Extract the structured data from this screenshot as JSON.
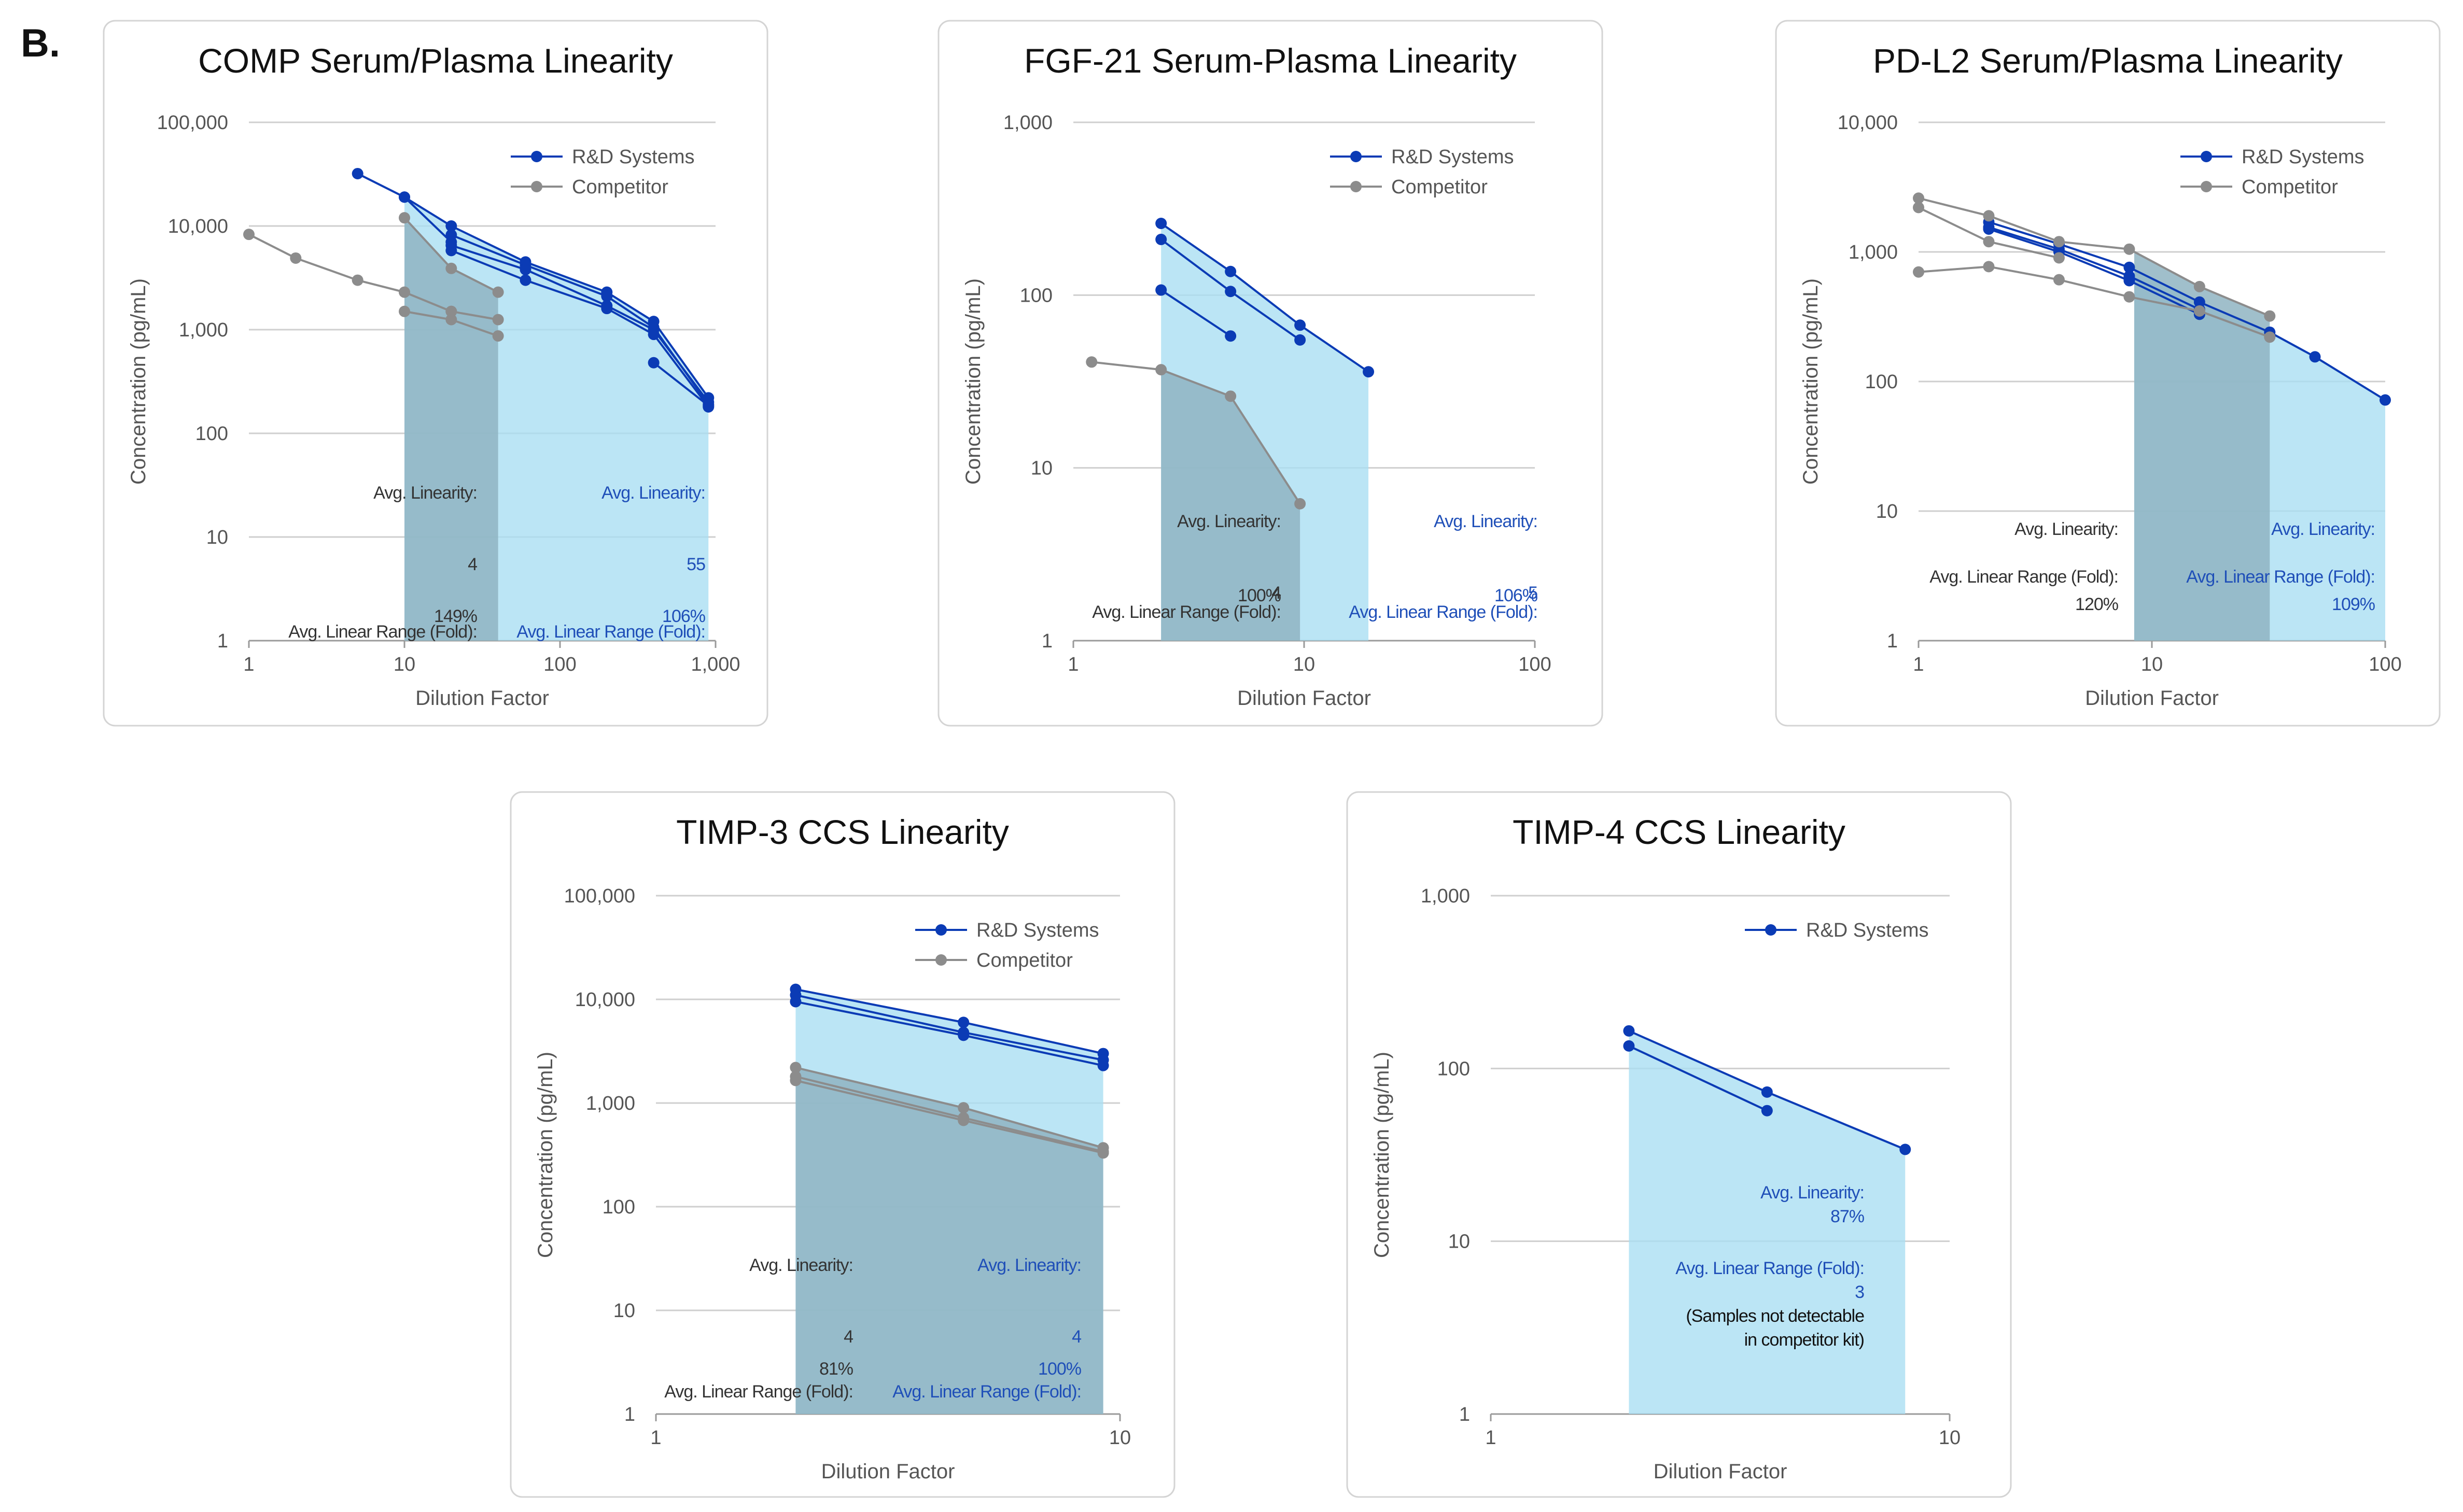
{
  "panel_label": "B.",
  "colors": {
    "rd": "#0b3bb5",
    "competitor": "#8c8c8c",
    "rd_fill": "#a8def2",
    "competitor_fill": "#8fb4c2",
    "rd_text": "#1f4fb8",
    "competitor_text": "#333333"
  },
  "legend": {
    "rd": "R&D Systems",
    "competitor": "Competitor"
  },
  "chart_data": [
    {
      "type": "line",
      "title": "COMP Serum/Plasma Linearity",
      "xlabel": "Dilution Factor",
      "ylabel": "Concentration (pg/mL)",
      "x_scale": "log",
      "y_scale": "log",
      "xlim": [
        1,
        1000
      ],
      "ylim": [
        1,
        100000
      ],
      "x_ticks": [
        1,
        10,
        100,
        1000
      ],
      "x_tick_labels": [
        "1",
        "10",
        "100",
        "1,000"
      ],
      "y_ticks": [
        1,
        10,
        100,
        1000,
        10000,
        100000
      ],
      "y_tick_labels": [
        "1",
        "10",
        "100",
        "1,000",
        "10,000",
        "100,000"
      ],
      "legend_position": "top-right",
      "legend_entries": [
        "rd",
        "competitor"
      ],
      "rd_range": [
        10,
        900
      ],
      "competitor_range": [
        10,
        40
      ],
      "series": [
        {
          "group": "rd",
          "x": [
            5,
            10,
            20,
            60,
            200,
            400,
            900
          ],
          "y": [
            32000,
            19000,
            10000,
            4500,
            2300,
            1200,
            220
          ]
        },
        {
          "group": "rd",
          "x": [
            20,
            60,
            200,
            400,
            900
          ],
          "y": [
            8200,
            4200,
            2100,
            1050,
            190
          ]
        },
        {
          "group": "rd",
          "x": [
            20,
            60,
            200,
            400,
            900
          ],
          "y": [
            6500,
            3800,
            1700,
            1000,
            200
          ]
        },
        {
          "group": "rd",
          "x": [
            20,
            60,
            200,
            400,
            900
          ],
          "y": [
            5800,
            3000,
            1600,
            900,
            180
          ]
        },
        {
          "group": "rd",
          "x": [
            10,
            20
          ],
          "y": [
            19000,
            7000
          ]
        },
        {
          "group": "rd",
          "x": [
            400,
            900
          ],
          "y": [
            480,
            185
          ]
        },
        {
          "group": "competitor",
          "x": [
            1,
            2,
            5,
            10,
            20
          ],
          "y": [
            8300,
            4900,
            3000,
            2300,
            1500
          ]
        },
        {
          "group": "competitor",
          "x": [
            10,
            20,
            40
          ],
          "y": [
            12000,
            3900,
            2300
          ]
        },
        {
          "group": "competitor",
          "x": [
            10,
            20,
            40
          ],
          "y": [
            1500,
            1250,
            870
          ]
        },
        {
          "group": "competitor",
          "x": [
            20,
            40
          ],
          "y": [
            1500,
            1250
          ]
        }
      ],
      "annotations": {
        "competitor": [
          "Avg. Linearity:",
          "149%",
          "Avg. Linear Range (Fold):",
          "4"
        ],
        "rd": [
          "Avg. Linearity:",
          "106%",
          "Avg. Linear Range (Fold):",
          "55"
        ]
      }
    },
    {
      "type": "line",
      "title": "FGF-21 Serum-Plasma Linearity",
      "xlabel": "Dilution Factor",
      "ylabel": "Concentration (pg/mL)",
      "x_scale": "log",
      "y_scale": "log",
      "xlim": [
        1,
        100
      ],
      "ylim": [
        1,
        1000
      ],
      "x_ticks": [
        1,
        10,
        100
      ],
      "x_tick_labels": [
        "1",
        "10",
        "100"
      ],
      "y_ticks": [
        1,
        10,
        100,
        1000
      ],
      "y_tick_labels": [
        "1",
        "10",
        "100",
        "1,000"
      ],
      "legend_position": "top-right",
      "legend_entries": [
        "rd",
        "competitor"
      ],
      "rd_range": [
        2.4,
        19
      ],
      "competitor_range": [
        2.4,
        9.6
      ],
      "series": [
        {
          "group": "rd",
          "x": [
            2.4,
            4.8,
            9.6,
            19
          ],
          "y": [
            260,
            137,
            67,
            36
          ]
        },
        {
          "group": "rd",
          "x": [
            2.4,
            4.8,
            9.6
          ],
          "y": [
            210,
            105,
            55
          ]
        },
        {
          "group": "rd",
          "x": [
            2.4,
            4.8
          ],
          "y": [
            107,
            58
          ]
        },
        {
          "group": "competitor",
          "x": [
            1.2,
            2.4,
            4.8,
            9.6
          ],
          "y": [
            41,
            37,
            26,
            6.2
          ]
        }
      ],
      "annotations": {
        "competitor": [
          "Avg. Linearity:",
          "100%",
          "Avg. Linear Range (Fold):",
          "4"
        ],
        "rd": [
          "Avg. Linearity:",
          "106%",
          "Avg. Linear Range (Fold):",
          "5"
        ]
      }
    },
    {
      "type": "line",
      "title": "PD-L2 Serum/Plasma Linearity",
      "xlabel": "Dilution Factor",
      "ylabel": "Concentration (pg/mL)",
      "x_scale": "log",
      "y_scale": "log",
      "xlim": [
        1,
        100
      ],
      "ylim": [
        1,
        10000
      ],
      "x_ticks": [
        1,
        10,
        100
      ],
      "x_tick_labels": [
        "1",
        "10",
        "100"
      ],
      "y_ticks": [
        1,
        10,
        100,
        1000,
        10000
      ],
      "y_tick_labels": [
        "1",
        "10",
        "100",
        "1,000",
        "10,000"
      ],
      "legend_position": "top-right",
      "legend_entries": [
        "rd",
        "competitor"
      ],
      "rd_range": [
        8.4,
        100
      ],
      "competitor_range": [
        8.4,
        33
      ],
      "series": [
        {
          "group": "rd",
          "x": [
            2,
            4,
            8,
            16,
            32,
            50,
            100
          ],
          "y": [
            1700,
            1150,
            760,
            410,
            240,
            155,
            72
          ]
        },
        {
          "group": "rd",
          "x": [
            2,
            4,
            8,
            16
          ],
          "y": [
            1550,
            1050,
            650,
            360
          ]
        },
        {
          "group": "rd",
          "x": [
            2,
            4,
            8,
            16
          ],
          "y": [
            1500,
            1000,
            600,
            330
          ]
        },
        {
          "group": "competitor",
          "x": [
            1,
            2,
            4,
            8,
            16,
            32
          ],
          "y": [
            2600,
            1900,
            1200,
            1050,
            540,
            320
          ]
        },
        {
          "group": "competitor",
          "x": [
            1,
            2,
            4
          ],
          "y": [
            2200,
            1200,
            900
          ]
        },
        {
          "group": "competitor",
          "x": [
            1,
            2,
            4,
            8,
            16,
            32
          ],
          "y": [
            700,
            770,
            610,
            450,
            350,
            220
          ]
        }
      ],
      "annotations": {
        "competitor": [
          "Avg. Linearity:",
          "120%",
          "Avg. Linear Range (Fold):"
        ],
        "rd": [
          "Avg. Linearity:",
          "109%",
          "Avg. Linear Range (Fold):"
        ]
      }
    },
    {
      "type": "line",
      "title": "TIMP-3 CCS Linearity",
      "xlabel": "Dilution Factor",
      "ylabel": "Concentration (pg/mL)",
      "x_scale": "log",
      "y_scale": "log",
      "xlim": [
        1,
        10
      ],
      "ylim": [
        1,
        100000
      ],
      "x_ticks": [
        1,
        10
      ],
      "x_tick_labels": [
        "1",
        "10"
      ],
      "y_ticks": [
        1,
        10,
        100,
        1000,
        10000,
        100000
      ],
      "y_tick_labels": [
        "1",
        "10",
        "100",
        "1,000",
        "10,000",
        "100,000"
      ],
      "legend_position": "top-right",
      "legend_entries": [
        "rd",
        "competitor"
      ],
      "rd_range": [
        2,
        9.2
      ],
      "competitor_range": [
        2,
        9.2
      ],
      "series": [
        {
          "group": "rd",
          "x": [
            2,
            4.6,
            9.2
          ],
          "y": [
            12500,
            6000,
            3000
          ]
        },
        {
          "group": "rd",
          "x": [
            2,
            4.6,
            9.2
          ],
          "y": [
            11000,
            4800,
            2600
          ]
        },
        {
          "group": "rd",
          "x": [
            2,
            4.6,
            9.2
          ],
          "y": [
            9500,
            4500,
            2300
          ]
        },
        {
          "group": "competitor",
          "x": [
            2,
            4.6,
            9.2
          ],
          "y": [
            2200,
            900,
            370
          ]
        },
        {
          "group": "competitor",
          "x": [
            2,
            4.6,
            9.2
          ],
          "y": [
            1800,
            720,
            340
          ]
        },
        {
          "group": "competitor",
          "x": [
            2,
            4.6,
            9.2
          ],
          "y": [
            1650,
            680,
            330
          ]
        }
      ],
      "annotations": {
        "competitor": [
          "Avg. Linearity:",
          "81%",
          "Avg. Linear Range (Fold):",
          "4"
        ],
        "rd": [
          "Avg. Linearity:",
          "100%",
          "Avg. Linear Range (Fold):",
          "4"
        ]
      }
    },
    {
      "type": "line",
      "title": "TIMP-4 CCS Linearity",
      "xlabel": "Dilution Factor",
      "ylabel": "Concentration (pg/mL)",
      "x_scale": "log",
      "y_scale": "log",
      "xlim": [
        1,
        10
      ],
      "ylim": [
        1,
        1000
      ],
      "x_ticks": [
        1,
        10
      ],
      "x_tick_labels": [
        "1",
        "10"
      ],
      "y_ticks": [
        1,
        10,
        100,
        1000
      ],
      "y_tick_labels": [
        "1",
        "10",
        "100",
        "1,000"
      ],
      "legend_position": "top-right",
      "legend_entries": [
        "rd"
      ],
      "rd_range": [
        2,
        8
      ],
      "competitor_range": null,
      "series": [
        {
          "group": "rd",
          "x": [
            2,
            4,
            8
          ],
          "y": [
            165,
            73,
            34
          ]
        },
        {
          "group": "rd",
          "x": [
            2,
            4
          ],
          "y": [
            135,
            57
          ]
        }
      ],
      "annotations": {
        "rd": [
          "Avg. Linearity:",
          "87%",
          "Avg. Linear Range (Fold):",
          "3",
          "(Samples not detectable",
          "in competitor kit)"
        ]
      }
    }
  ]
}
